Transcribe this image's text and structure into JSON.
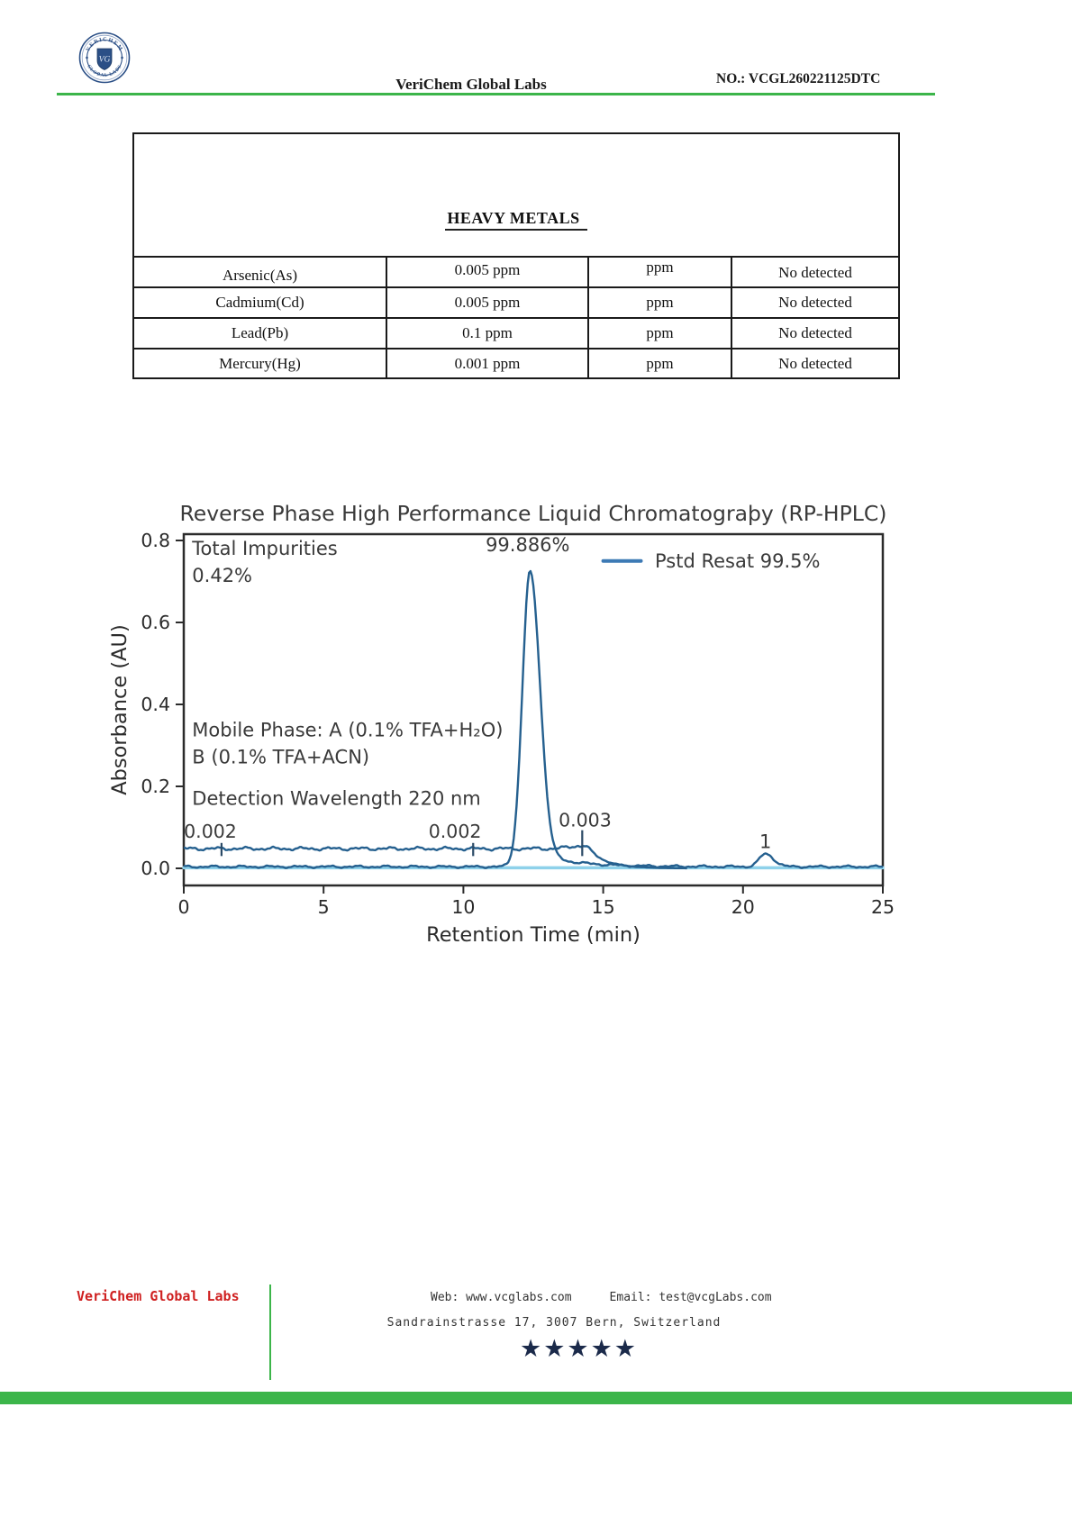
{
  "header": {
    "logo": {
      "arc_top": "VERICHEM",
      "arc_bottom": "GLOBAL LABS",
      "monogram": "VG"
    },
    "company": "VeriChem Global Labs",
    "report_no": "NO.: VCGL260221125DTC"
  },
  "heavy_metals": {
    "title": "HEAVY METALS",
    "rows": [
      {
        "name": "Arsenic(As)",
        "limit": "0.005 ppm",
        "unit": "ppm",
        "result": "No detected"
      },
      {
        "name": "Cadmium(Cd)",
        "limit": "0.005 ppm",
        "unit": "ppm",
        "result": "No detected"
      },
      {
        "name": "Lead(Pb)",
        "limit": "0.1 ppm",
        "unit": "ppm",
        "result": "No detected"
      },
      {
        "name": "Mercury(Hg)",
        "limit": "0.001 ppm",
        "unit": "ppm",
        "result": "No detected"
      }
    ]
  },
  "chart_data": {
    "type": "line",
    "title": "Reverse Phase High Performance Liquid Chromatograþy (RP-HPLC)",
    "xlabel": "Retention Time (min)",
    "ylabel": "Absorbance (AU)",
    "xlim": [
      0,
      25
    ],
    "ylim": [
      0,
      0.84
    ],
    "xticks": [
      0,
      5,
      10,
      15,
      20,
      25
    ],
    "yticks": [
      "0.0",
      "0.2",
      "0.4",
      "0.6",
      "0.8"
    ],
    "grid": false,
    "legend": {
      "label": "Pstd Resat 99.5%",
      "position": "upper right",
      "line_color": "#3d7ab5"
    },
    "trace_color": "#25608f",
    "light_trace_color": "#8ed1ea",
    "text_color": "#3a3a3a",
    "series": [
      {
        "name": "impurity baseline trace",
        "baseline_au": 0.048,
        "noise_au": 0.005,
        "start_min": 0,
        "flat_until_min": 14.4,
        "decay_tau_min": 0.7,
        "end_min": 18,
        "peaks": [
          {
            "center_min": 14.2,
            "height_au": 0.007,
            "sigma_min": 0.4
          }
        ]
      },
      {
        "name": "Pstd Resat 99.5%",
        "baseline_au": 0.004,
        "noise_au": 0.0035,
        "start_min": 0,
        "end_min": 25,
        "peaks": [
          {
            "center_min": 12.38,
            "height_au": 0.72,
            "sigma_left_min": 0.27,
            "sigma_right_min": 0.35,
            "tail_au": 0.035,
            "tail_tau_min": 1.4,
            "label": "99.886%",
            "area_pct": 99.886
          },
          {
            "center_min": 20.8,
            "height_au": 0.031,
            "sigma_left_min": 0.22,
            "sigma_right_min": 0.3,
            "label": "1"
          }
        ]
      }
    ],
    "annotations": {
      "text_blocks": [
        {
          "lines": [
            "Total Impurities",
            "0.42%"
          ],
          "x_min": 0.3,
          "y_au": 0.765
        },
        {
          "lines": [
            "Mobile Phase: A (0.1% TFA+H₂O)",
            "B (0.1% TFA+ACN)"
          ],
          "x_min": 0.3,
          "y_au": 0.322
        },
        {
          "lines": [
            "Detection Wavelength 220 nm"
          ],
          "x_min": 0.3,
          "y_au": 0.155
        }
      ],
      "peak_labels": [
        {
          "text": "99.886%",
          "x_min": 12.3,
          "y_au": 0.774
        },
        {
          "text": "1",
          "x_min": 20.8,
          "y_au": 0.049
        }
      ],
      "markers": [
        {
          "label": "0.002",
          "label_x_min": 0.95,
          "label_y_au": 0.075,
          "tick_x_min": 1.35,
          "tick_top_au": 0.062,
          "tick_bottom_au": 0.03
        },
        {
          "label": "0.002",
          "label_x_min": 9.7,
          "label_y_au": 0.075,
          "tick_x_min": 10.35,
          "tick_top_au": 0.062,
          "tick_bottom_au": 0.03
        },
        {
          "label": "0.003",
          "label_x_min": 14.35,
          "label_y_au": 0.102,
          "tick_x_min": 14.25,
          "tick_top_au": 0.093,
          "tick_bottom_au": 0.03
        }
      ]
    }
  },
  "footer": {
    "brand": "VeriChem Global Labs",
    "web_label": "Web: www.vcglabs.com",
    "email_label": "Email: test@vcgLabs.com",
    "address": "Sandrainstrasse 17, 3007 Bern, Switzerland",
    "stars": "★★★★★",
    "accent_green": "#3cb54a",
    "brand_red": "#cf2020"
  }
}
